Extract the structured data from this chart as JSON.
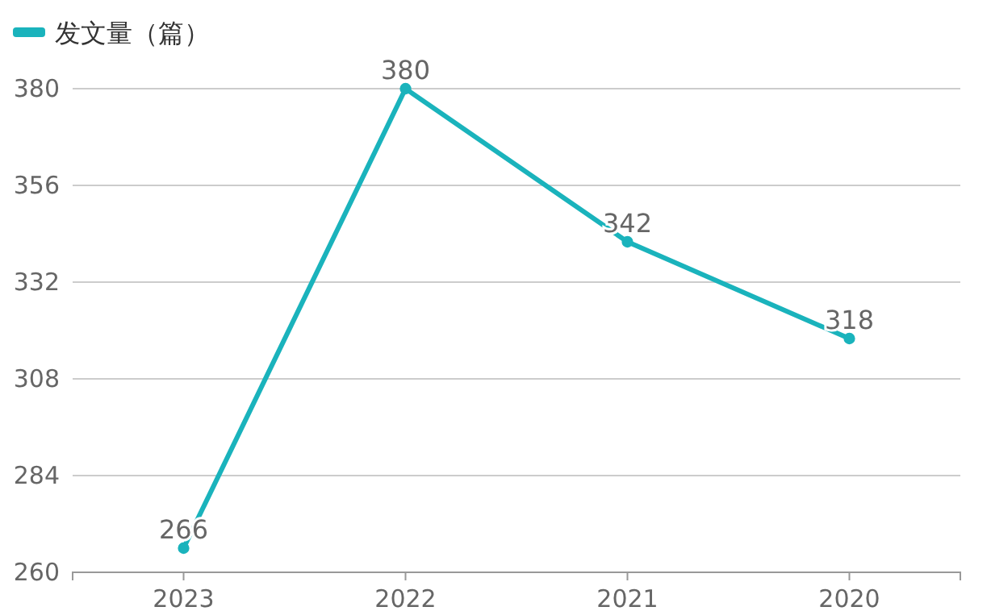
{
  "chart_data": {
    "type": "line",
    "categories": [
      "2023",
      "2022",
      "2021",
      "2020"
    ],
    "series": [
      {
        "name": "发文量（篇）",
        "color": "#1ab3bc",
        "values": [
          266,
          380,
          342,
          318
        ]
      }
    ],
    "ylim": [
      260,
      380
    ],
    "yticks": [
      260,
      284,
      308,
      332,
      356,
      380
    ],
    "grid": "y",
    "legend": "top left",
    "marker": "circle",
    "data_labels": true
  }
}
